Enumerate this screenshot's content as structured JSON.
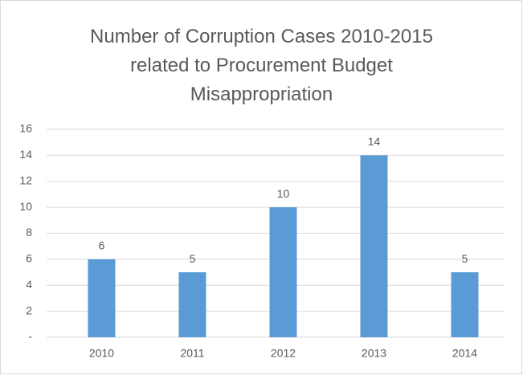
{
  "chart_data": {
    "type": "bar",
    "title": "Number of Corruption Cases 2010-2015 related to Procurement Budget Misappropriation",
    "categories": [
      "2010",
      "2011",
      "2012",
      "2013",
      "2014"
    ],
    "values": [
      6,
      5,
      10,
      14,
      5
    ],
    "color": "#5b9bd5",
    "ylim": [
      0,
      16
    ],
    "yticks": [
      {
        "value": 0,
        "label": "-"
      },
      2,
      4,
      6,
      8,
      10,
      12,
      14,
      16
    ],
    "grid": true
  }
}
